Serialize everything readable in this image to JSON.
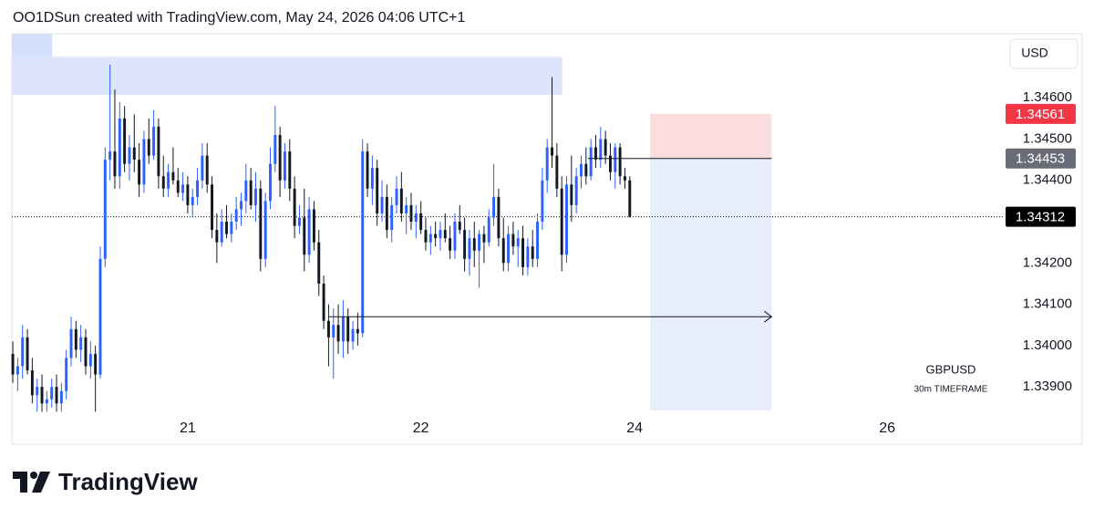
{
  "header": "OO1DSun created with TradingView.com, May 24, 2026 04:06 UTC+1",
  "logo": "TradingView",
  "chart_data": {
    "type": "candlestick",
    "symbol": "GBPUSD",
    "subtitle": "30m TIMEFRAME",
    "currency": "USD",
    "up_color": "#2962ff",
    "down_color": "#131722",
    "xlim": [
      -0.2,
      203.8
    ],
    "ylim": [
      1.33843,
      1.34755
    ],
    "xticks": [
      {
        "value": 36,
        "label": "21"
      },
      {
        "value": 84,
        "label": "22"
      },
      {
        "value": 128,
        "label": "24"
      },
      {
        "value": 180,
        "label": "26"
      }
    ],
    "yticks": [
      {
        "value": 1.346,
        "label": "1.34600"
      },
      {
        "value": 1.345,
        "label": "1.34500"
      },
      {
        "value": 1.344,
        "label": "1.34400"
      },
      {
        "value": 1.342,
        "label": "1.34200"
      },
      {
        "value": 1.341,
        "label": "1.34100"
      },
      {
        "value": 1.34,
        "label": "1.34000"
      },
      {
        "value": 1.339,
        "label": "1.33900"
      }
    ],
    "price_labels": [
      {
        "value": 1.34561,
        "color": "#f23645"
      },
      {
        "value": 1.34453,
        "color": "#6a6d78"
      },
      {
        "value": 1.34312,
        "color": "#000000"
      }
    ],
    "zones": [
      {
        "x": [
          -0.2,
          8.1
        ],
        "y": [
          1.34668,
          1.34755
        ],
        "color": "#d6e0fb"
      },
      {
        "x": [
          -0.2,
          113.1
        ],
        "y": [
          1.34607,
          1.34699
        ],
        "color": "#dde5fc"
      }
    ],
    "position": {
      "x": [
        131.2,
        156.2
      ],
      "entry": 1.34453,
      "stop": 1.34561,
      "target": 1.33843,
      "stop_color": "#fbdde0",
      "target_color": "#e8edfc"
    },
    "lines": [
      {
        "x": [
          118.4,
          156.2
        ],
        "y": 1.34453,
        "arrow": false
      },
      {
        "x": [
          65,
          156.2
        ],
        "y": 1.3407,
        "arrow": true
      }
    ],
    "candles": [
      [
        1.3398,
        1.3401,
        1.3391,
        1.3393
      ],
      [
        1.3393,
        1.3397,
        1.3389,
        1.3395
      ],
      [
        1.3395,
        1.3405,
        1.3392,
        1.3402
      ],
      [
        1.3402,
        1.3404,
        1.3393,
        1.3394
      ],
      [
        1.3394,
        1.3397,
        1.3386,
        1.3388
      ],
      [
        1.3388,
        1.3392,
        1.3384,
        1.339
      ],
      [
        1.339,
        1.3393,
        1.3384,
        1.3386
      ],
      [
        1.3386,
        1.3389,
        1.3384,
        1.3387
      ],
      [
        1.3387,
        1.3392,
        1.3385,
        1.339
      ],
      [
        1.339,
        1.3393,
        1.3384,
        1.3386
      ],
      [
        1.3386,
        1.3391,
        1.3384,
        1.3389
      ],
      [
        1.3389,
        1.3399,
        1.3387,
        1.3397
      ],
      [
        1.3397,
        1.3407,
        1.3395,
        1.3404
      ],
      [
        1.3404,
        1.3406,
        1.3397,
        1.3399
      ],
      [
        1.3399,
        1.3405,
        1.3396,
        1.3402
      ],
      [
        1.3402,
        1.3404,
        1.3393,
        1.3395
      ],
      [
        1.3395,
        1.3401,
        1.3392,
        1.3398
      ],
      [
        1.3398,
        1.34,
        1.3384,
        1.3393
      ],
      [
        1.3393,
        1.3424,
        1.3392,
        1.3421
      ],
      [
        1.3421,
        1.3448,
        1.3419,
        1.3445
      ],
      [
        1.3445,
        1.3468,
        1.344,
        1.3447
      ],
      [
        1.3447,
        1.3462,
        1.3438,
        1.3441
      ],
      [
        1.3441,
        1.3459,
        1.3438,
        1.3455
      ],
      [
        1.3455,
        1.3458,
        1.3442,
        1.3444
      ],
      [
        1.3444,
        1.3451,
        1.344,
        1.3448
      ],
      [
        1.3448,
        1.3456,
        1.3442,
        1.3445
      ],
      [
        1.3445,
        1.3449,
        1.3436,
        1.3439
      ],
      [
        1.3439,
        1.3452,
        1.3437,
        1.345
      ],
      [
        1.345,
        1.3455,
        1.3444,
        1.3446
      ],
      [
        1.3446,
        1.3457,
        1.3445,
        1.3453
      ],
      [
        1.3453,
        1.3455,
        1.3438,
        1.3441
      ],
      [
        1.3441,
        1.3446,
        1.3436,
        1.3438
      ],
      [
        1.3438,
        1.3444,
        1.3436,
        1.3442
      ],
      [
        1.3442,
        1.3448,
        1.3439,
        1.344
      ],
      [
        1.344,
        1.3443,
        1.3436,
        1.3437
      ],
      [
        1.3437,
        1.3442,
        1.3435,
        1.3439
      ],
      [
        1.3439,
        1.3441,
        1.3432,
        1.3434
      ],
      [
        1.3434,
        1.3438,
        1.3431,
        1.3436
      ],
      [
        1.3436,
        1.3443,
        1.3434,
        1.344
      ],
      [
        1.344,
        1.3449,
        1.3438,
        1.3446
      ],
      [
        1.3446,
        1.3449,
        1.3437,
        1.3439
      ],
      [
        1.3439,
        1.3441,
        1.3426,
        1.3428
      ],
      [
        1.3428,
        1.3432,
        1.342,
        1.3425
      ],
      [
        1.3425,
        1.3433,
        1.3424,
        1.343
      ],
      [
        1.343,
        1.3434,
        1.3426,
        1.3427
      ],
      [
        1.3427,
        1.3432,
        1.3425,
        1.343
      ],
      [
        1.343,
        1.3436,
        1.3428,
        1.3433
      ],
      [
        1.3433,
        1.3437,
        1.3429,
        1.3435
      ],
      [
        1.3435,
        1.3444,
        1.3432,
        1.344
      ],
      [
        1.344,
        1.3443,
        1.3433,
        1.3434
      ],
      [
        1.3434,
        1.3442,
        1.343,
        1.3438
      ],
      [
        1.3438,
        1.344,
        1.3418,
        1.3421
      ],
      [
        1.3421,
        1.3437,
        1.3419,
        1.3435
      ],
      [
        1.3435,
        1.3448,
        1.3433,
        1.3444
      ],
      [
        1.3444,
        1.3458,
        1.3442,
        1.3451
      ],
      [
        1.3451,
        1.3453,
        1.3436,
        1.344
      ],
      [
        1.344,
        1.3449,
        1.3438,
        1.3447
      ],
      [
        1.3447,
        1.345,
        1.3435,
        1.3438
      ],
      [
        1.3438,
        1.3441,
        1.3426,
        1.3429
      ],
      [
        1.3429,
        1.3434,
        1.3427,
        1.3431
      ],
      [
        1.3431,
        1.3438,
        1.3418,
        1.3422
      ],
      [
        1.3422,
        1.3436,
        1.342,
        1.3433
      ],
      [
        1.3433,
        1.3435,
        1.3423,
        1.3425
      ],
      [
        1.3425,
        1.3428,
        1.3412,
        1.3415
      ],
      [
        1.3415,
        1.3417,
        1.3404,
        1.3406
      ],
      [
        1.3406,
        1.341,
        1.3395,
        1.3402
      ],
      [
        1.3402,
        1.3409,
        1.3392,
        1.3405
      ],
      [
        1.3405,
        1.341,
        1.3398,
        1.3401
      ],
      [
        1.3401,
        1.3411,
        1.3397,
        1.3407
      ],
      [
        1.3407,
        1.3409,
        1.3398,
        1.3401
      ],
      [
        1.3401,
        1.3406,
        1.3399,
        1.3404
      ],
      [
        1.3404,
        1.3408,
        1.34,
        1.3403
      ],
      [
        1.3403,
        1.345,
        1.3402,
        1.3447
      ],
      [
        1.3447,
        1.3449,
        1.3436,
        1.3438
      ],
      [
        1.3438,
        1.3446,
        1.3434,
        1.3443
      ],
      [
        1.3443,
        1.3445,
        1.3429,
        1.3432
      ],
      [
        1.3432,
        1.344,
        1.343,
        1.3436
      ],
      [
        1.3436,
        1.3439,
        1.3426,
        1.3428
      ],
      [
        1.3428,
        1.3436,
        1.3425,
        1.3434
      ],
      [
        1.3434,
        1.3441,
        1.3432,
        1.3438
      ],
      [
        1.3438,
        1.3442,
        1.343,
        1.3432
      ],
      [
        1.3432,
        1.3436,
        1.3427,
        1.3434
      ],
      [
        1.3434,
        1.3437,
        1.3428,
        1.343
      ],
      [
        1.343,
        1.3434,
        1.3426,
        1.3432
      ],
      [
        1.3432,
        1.3435,
        1.3427,
        1.3428
      ],
      [
        1.3428,
        1.3431,
        1.3423,
        1.3425
      ],
      [
        1.3425,
        1.3429,
        1.3422,
        1.3427
      ],
      [
        1.3427,
        1.343,
        1.3424,
        1.3426
      ],
      [
        1.3426,
        1.343,
        1.3423,
        1.3428
      ],
      [
        1.3428,
        1.3432,
        1.3425,
        1.3426
      ],
      [
        1.3426,
        1.3429,
        1.3421,
        1.3423
      ],
      [
        1.3423,
        1.3432,
        1.3421,
        1.343
      ],
      [
        1.343,
        1.3434,
        1.3427,
        1.3428
      ],
      [
        1.3428,
        1.3431,
        1.3418,
        1.3421
      ],
      [
        1.3421,
        1.3428,
        1.3417,
        1.3426
      ],
      [
        1.3426,
        1.343,
        1.3419,
        1.3423
      ],
      [
        1.3423,
        1.3428,
        1.3414,
        1.3427
      ],
      [
        1.3427,
        1.3429,
        1.342,
        1.3425
      ],
      [
        1.3425,
        1.3433,
        1.3424,
        1.3431
      ],
      [
        1.3431,
        1.3444,
        1.3429,
        1.3436
      ],
      [
        1.3436,
        1.3438,
        1.3424,
        1.3426
      ],
      [
        1.3426,
        1.3431,
        1.3418,
        1.342
      ],
      [
        1.342,
        1.3429,
        1.3418,
        1.3427
      ],
      [
        1.3427,
        1.343,
        1.3422,
        1.3424
      ],
      [
        1.3424,
        1.3428,
        1.3419,
        1.3426
      ],
      [
        1.3426,
        1.3429,
        1.3417,
        1.3419
      ],
      [
        1.3419,
        1.3426,
        1.3417,
        1.3424
      ],
      [
        1.3424,
        1.3428,
        1.3419,
        1.3421
      ],
      [
        1.3421,
        1.3432,
        1.3419,
        1.343
      ],
      [
        1.343,
        1.3443,
        1.3428,
        1.344
      ],
      [
        1.344,
        1.345,
        1.3437,
        1.3448
      ],
      [
        1.3448,
        1.3465,
        1.3443,
        1.3446
      ],
      [
        1.3446,
        1.3449,
        1.3436,
        1.3438
      ],
      [
        1.3438,
        1.3441,
        1.3418,
        1.3422
      ],
      [
        1.3422,
        1.3441,
        1.342,
        1.3439
      ],
      [
        1.3439,
        1.3446,
        1.343,
        1.3434
      ],
      [
        1.3434,
        1.3443,
        1.3432,
        1.3441
      ],
      [
        1.3441,
        1.3446,
        1.3438,
        1.3444
      ],
      [
        1.3444,
        1.3448,
        1.3439,
        1.3441
      ],
      [
        1.3441,
        1.345,
        1.344,
        1.3448
      ],
      [
        1.3448,
        1.3451,
        1.3443,
        1.3445
      ],
      [
        1.3445,
        1.3453,
        1.3443,
        1.345
      ],
      [
        1.345,
        1.3452,
        1.3444,
        1.3446
      ],
      [
        1.3446,
        1.3449,
        1.344,
        1.3442
      ],
      [
        1.3442,
        1.3449,
        1.3438,
        1.3448
      ],
      [
        1.3448,
        1.3449,
        1.3439,
        1.3441
      ],
      [
        1.3441,
        1.3443,
        1.3438,
        1.344
      ],
      [
        1.344,
        1.3441,
        1.3431,
        1.34312
      ]
    ]
  }
}
